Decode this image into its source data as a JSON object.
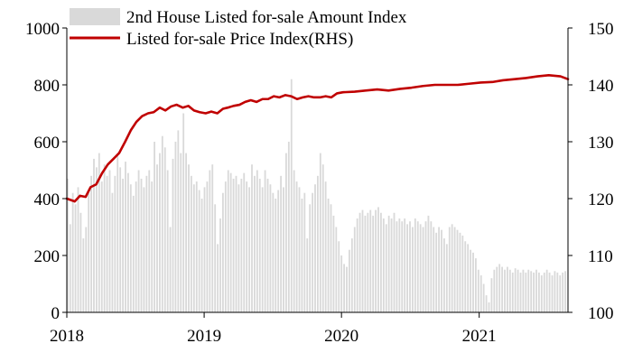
{
  "chart_data": {
    "type": "bar+line",
    "legend": {
      "placement": "top-left",
      "entries": [
        {
          "label": "2nd House Listed for-sale Amount Index",
          "marker": "bar",
          "color": "#d9d9d9"
        },
        {
          "label": "Listed for-sale Price Index(RHS)",
          "marker": "line",
          "color": "#c00000"
        }
      ]
    },
    "x": {
      "range": [
        "2018-01-01",
        "2021-08-25"
      ],
      "ticks": [
        {
          "date": "2018-01-01",
          "label": "2018"
        },
        {
          "date": "2019-01-01",
          "label": "2019"
        },
        {
          "date": "2020-01-01",
          "label": "2020"
        },
        {
          "date": "2021-01-01",
          "label": "2021"
        }
      ]
    },
    "y_left": {
      "range": [
        0,
        1000
      ],
      "ticks": [
        0,
        200,
        400,
        600,
        800,
        1000
      ]
    },
    "y_right": {
      "range": [
        100,
        150
      ],
      "ticks": [
        100,
        110,
        120,
        130,
        140,
        150
      ]
    },
    "grid": false,
    "series": [
      {
        "name": "2nd House Listed for-sale Amount Index",
        "type": "bar",
        "axis": "left",
        "color": "#d9d9d9",
        "points": [
          [
            "2018-01-03",
            470
          ],
          [
            "2018-01-10",
            310
          ],
          [
            "2018-01-17",
            420
          ],
          [
            "2018-01-24",
            380
          ],
          [
            "2018-01-31",
            440
          ],
          [
            "2018-02-07",
            350
          ],
          [
            "2018-02-14",
            260
          ],
          [
            "2018-02-21",
            300
          ],
          [
            "2018-02-28",
            420
          ],
          [
            "2018-03-07",
            480
          ],
          [
            "2018-03-14",
            540
          ],
          [
            "2018-03-21",
            510
          ],
          [
            "2018-03-28",
            560
          ],
          [
            "2018-04-04",
            460
          ],
          [
            "2018-04-11",
            520
          ],
          [
            "2018-04-18",
            480
          ],
          [
            "2018-04-25",
            500
          ],
          [
            "2018-05-02",
            420
          ],
          [
            "2018-05-09",
            480
          ],
          [
            "2018-05-16",
            550
          ],
          [
            "2018-05-23",
            510
          ],
          [
            "2018-05-30",
            470
          ],
          [
            "2018-06-06",
            530
          ],
          [
            "2018-06-13",
            490
          ],
          [
            "2018-06-20",
            450
          ],
          [
            "2018-06-27",
            410
          ],
          [
            "2018-07-04",
            460
          ],
          [
            "2018-07-11",
            500
          ],
          [
            "2018-07-18",
            470
          ],
          [
            "2018-07-25",
            440
          ],
          [
            "2018-08-01",
            480
          ],
          [
            "2018-08-08",
            500
          ],
          [
            "2018-08-15",
            460
          ],
          [
            "2018-08-22",
            600
          ],
          [
            "2018-08-29",
            520
          ],
          [
            "2018-09-05",
            560
          ],
          [
            "2018-09-12",
            620
          ],
          [
            "2018-09-19",
            580
          ],
          [
            "2018-09-26",
            500
          ],
          [
            "2018-10-03",
            300
          ],
          [
            "2018-10-10",
            540
          ],
          [
            "2018-10-17",
            600
          ],
          [
            "2018-10-24",
            640
          ],
          [
            "2018-10-31",
            560
          ],
          [
            "2018-11-07",
            700
          ],
          [
            "2018-11-14",
            560
          ],
          [
            "2018-11-21",
            520
          ],
          [
            "2018-11-28",
            480
          ],
          [
            "2018-12-05",
            450
          ],
          [
            "2018-12-12",
            460
          ],
          [
            "2018-12-19",
            430
          ],
          [
            "2018-12-26",
            400
          ],
          [
            "2019-01-02",
            440
          ],
          [
            "2019-01-09",
            460
          ],
          [
            "2019-01-16",
            500
          ],
          [
            "2019-01-23",
            520
          ],
          [
            "2019-01-30",
            380
          ],
          [
            "2019-02-06",
            240
          ],
          [
            "2019-02-13",
            330
          ],
          [
            "2019-02-20",
            420
          ],
          [
            "2019-02-27",
            460
          ],
          [
            "2019-03-06",
            500
          ],
          [
            "2019-03-13",
            490
          ],
          [
            "2019-03-20",
            470
          ],
          [
            "2019-03-27",
            480
          ],
          [
            "2019-04-03",
            450
          ],
          [
            "2019-04-10",
            470
          ],
          [
            "2019-04-17",
            490
          ],
          [
            "2019-04-24",
            460
          ],
          [
            "2019-05-01",
            440
          ],
          [
            "2019-05-08",
            520
          ],
          [
            "2019-05-15",
            480
          ],
          [
            "2019-05-22",
            500
          ],
          [
            "2019-05-29",
            470
          ],
          [
            "2019-06-05",
            440
          ],
          [
            "2019-06-12",
            500
          ],
          [
            "2019-06-19",
            470
          ],
          [
            "2019-06-26",
            450
          ],
          [
            "2019-07-03",
            420
          ],
          [
            "2019-07-10",
            400
          ],
          [
            "2019-07-17",
            430
          ],
          [
            "2019-07-24",
            480
          ],
          [
            "2019-07-31",
            440
          ],
          [
            "2019-08-07",
            560
          ],
          [
            "2019-08-14",
            600
          ],
          [
            "2019-08-21",
            820
          ],
          [
            "2019-08-28",
            500
          ],
          [
            "2019-09-04",
            460
          ],
          [
            "2019-09-11",
            440
          ],
          [
            "2019-09-18",
            400
          ],
          [
            "2019-09-25",
            420
          ],
          [
            "2019-10-02",
            260
          ],
          [
            "2019-10-09",
            380
          ],
          [
            "2019-10-16",
            420
          ],
          [
            "2019-10-23",
            450
          ],
          [
            "2019-10-30",
            480
          ],
          [
            "2019-11-06",
            560
          ],
          [
            "2019-11-13",
            520
          ],
          [
            "2019-11-20",
            460
          ],
          [
            "2019-11-27",
            400
          ],
          [
            "2019-12-04",
            380
          ],
          [
            "2019-12-11",
            340
          ],
          [
            "2019-12-18",
            300
          ],
          [
            "2019-12-25",
            250
          ],
          [
            "2020-01-01",
            200
          ],
          [
            "2020-01-08",
            170
          ],
          [
            "2020-01-15",
            160
          ],
          [
            "2020-01-22",
            220
          ],
          [
            "2020-01-29",
            260
          ],
          [
            "2020-02-05",
            300
          ],
          [
            "2020-02-12",
            330
          ],
          [
            "2020-02-19",
            350
          ],
          [
            "2020-02-26",
            360
          ],
          [
            "2020-03-04",
            340
          ],
          [
            "2020-03-11",
            350
          ],
          [
            "2020-03-18",
            360
          ],
          [
            "2020-03-25",
            340
          ],
          [
            "2020-04-01",
            360
          ],
          [
            "2020-04-08",
            370
          ],
          [
            "2020-04-15",
            350
          ],
          [
            "2020-04-22",
            330
          ],
          [
            "2020-04-29",
            310
          ],
          [
            "2020-05-06",
            340
          ],
          [
            "2020-05-13",
            330
          ],
          [
            "2020-05-20",
            350
          ],
          [
            "2020-05-27",
            320
          ],
          [
            "2020-06-03",
            330
          ],
          [
            "2020-06-10",
            320
          ],
          [
            "2020-06-17",
            330
          ],
          [
            "2020-06-24",
            310
          ],
          [
            "2020-07-01",
            320
          ],
          [
            "2020-07-08",
            300
          ],
          [
            "2020-07-15",
            330
          ],
          [
            "2020-07-22",
            320
          ],
          [
            "2020-07-29",
            310
          ],
          [
            "2020-08-05",
            300
          ],
          [
            "2020-08-12",
            320
          ],
          [
            "2020-08-19",
            340
          ],
          [
            "2020-08-26",
            320
          ],
          [
            "2020-09-02",
            300
          ],
          [
            "2020-09-09",
            280
          ],
          [
            "2020-09-16",
            300
          ],
          [
            "2020-09-23",
            290
          ],
          [
            "2020-09-30",
            260
          ],
          [
            "2020-10-07",
            240
          ],
          [
            "2020-10-14",
            300
          ],
          [
            "2020-10-21",
            310
          ],
          [
            "2020-10-28",
            300
          ],
          [
            "2020-11-04",
            290
          ],
          [
            "2020-11-11",
            280
          ],
          [
            "2020-11-18",
            270
          ],
          [
            "2020-11-25",
            250
          ],
          [
            "2020-12-02",
            240
          ],
          [
            "2020-12-09",
            220
          ],
          [
            "2020-12-16",
            210
          ],
          [
            "2020-12-23",
            190
          ],
          [
            "2020-12-30",
            150
          ],
          [
            "2021-01-06",
            130
          ],
          [
            "2021-01-13",
            100
          ],
          [
            "2021-01-20",
            60
          ],
          [
            "2021-01-27",
            35
          ],
          [
            "2021-02-03",
            120
          ],
          [
            "2021-02-10",
            150
          ],
          [
            "2021-02-17",
            160
          ],
          [
            "2021-02-24",
            170
          ],
          [
            "2021-03-03",
            160
          ],
          [
            "2021-03-10",
            150
          ],
          [
            "2021-03-17",
            160
          ],
          [
            "2021-03-24",
            150
          ],
          [
            "2021-03-31",
            140
          ],
          [
            "2021-04-07",
            155
          ],
          [
            "2021-04-14",
            150
          ],
          [
            "2021-04-21",
            140
          ],
          [
            "2021-04-28",
            150
          ],
          [
            "2021-05-05",
            140
          ],
          [
            "2021-05-12",
            150
          ],
          [
            "2021-05-19",
            145
          ],
          [
            "2021-05-26",
            140
          ],
          [
            "2021-06-02",
            150
          ],
          [
            "2021-06-09",
            140
          ],
          [
            "2021-06-16",
            130
          ],
          [
            "2021-06-23",
            140
          ],
          [
            "2021-06-30",
            150
          ],
          [
            "2021-07-07",
            140
          ],
          [
            "2021-07-14",
            130
          ],
          [
            "2021-07-21",
            145
          ],
          [
            "2021-07-28",
            140
          ],
          [
            "2021-08-04",
            130
          ],
          [
            "2021-08-11",
            140
          ],
          [
            "2021-08-18",
            145
          ]
        ]
      },
      {
        "name": "Listed for-sale Price Index(RHS)",
        "type": "line",
        "axis": "right",
        "color": "#c00000",
        "points": [
          [
            "2018-01-01",
            120
          ],
          [
            "2018-01-22",
            119.5
          ],
          [
            "2018-02-05",
            120.5
          ],
          [
            "2018-02-20",
            120.3
          ],
          [
            "2018-03-05",
            122
          ],
          [
            "2018-03-20",
            122.5
          ],
          [
            "2018-04-05",
            124.5
          ],
          [
            "2018-04-20",
            126
          ],
          [
            "2018-05-05",
            127
          ],
          [
            "2018-05-20",
            128
          ],
          [
            "2018-06-05",
            130
          ],
          [
            "2018-06-20",
            132
          ],
          [
            "2018-07-05",
            133.5
          ],
          [
            "2018-07-20",
            134.5
          ],
          [
            "2018-08-05",
            135
          ],
          [
            "2018-08-20",
            135.2
          ],
          [
            "2018-09-05",
            136
          ],
          [
            "2018-09-20",
            135.5
          ],
          [
            "2018-10-05",
            136.2
          ],
          [
            "2018-10-20",
            136.5
          ],
          [
            "2018-11-05",
            136
          ],
          [
            "2018-11-20",
            136.3
          ],
          [
            "2018-12-05",
            135.5
          ],
          [
            "2018-12-20",
            135.2
          ],
          [
            "2019-01-05",
            135
          ],
          [
            "2019-01-20",
            135.3
          ],
          [
            "2019-02-05",
            135
          ],
          [
            "2019-02-20",
            135.8
          ],
          [
            "2019-03-05",
            136
          ],
          [
            "2019-03-20",
            136.3
          ],
          [
            "2019-04-05",
            136.5
          ],
          [
            "2019-04-20",
            137
          ],
          [
            "2019-05-05",
            137.3
          ],
          [
            "2019-05-20",
            137
          ],
          [
            "2019-06-05",
            137.5
          ],
          [
            "2019-06-20",
            137.5
          ],
          [
            "2019-07-05",
            138
          ],
          [
            "2019-07-20",
            137.8
          ],
          [
            "2019-08-05",
            138.2
          ],
          [
            "2019-08-20",
            138
          ],
          [
            "2019-09-05",
            137.5
          ],
          [
            "2019-09-20",
            137.8
          ],
          [
            "2019-10-05",
            138
          ],
          [
            "2019-10-20",
            137.8
          ],
          [
            "2019-11-05",
            137.8
          ],
          [
            "2019-11-20",
            138
          ],
          [
            "2019-12-05",
            137.8
          ],
          [
            "2019-12-20",
            138.5
          ],
          [
            "2020-01-05",
            138.7
          ],
          [
            "2020-02-05",
            138.8
          ],
          [
            "2020-03-05",
            139
          ],
          [
            "2020-04-05",
            139.2
          ],
          [
            "2020-05-05",
            139
          ],
          [
            "2020-06-05",
            139.3
          ],
          [
            "2020-07-05",
            139.5
          ],
          [
            "2020-08-05",
            139.8
          ],
          [
            "2020-09-05",
            140
          ],
          [
            "2020-10-05",
            140
          ],
          [
            "2020-11-05",
            140
          ],
          [
            "2020-12-05",
            140.2
          ],
          [
            "2021-01-05",
            140.4
          ],
          [
            "2021-02-05",
            140.5
          ],
          [
            "2021-03-05",
            140.8
          ],
          [
            "2021-04-05",
            141
          ],
          [
            "2021-05-05",
            141.2
          ],
          [
            "2021-06-05",
            141.5
          ],
          [
            "2021-07-05",
            141.7
          ],
          [
            "2021-08-05",
            141.5
          ],
          [
            "2021-08-25",
            141
          ]
        ]
      }
    ]
  }
}
